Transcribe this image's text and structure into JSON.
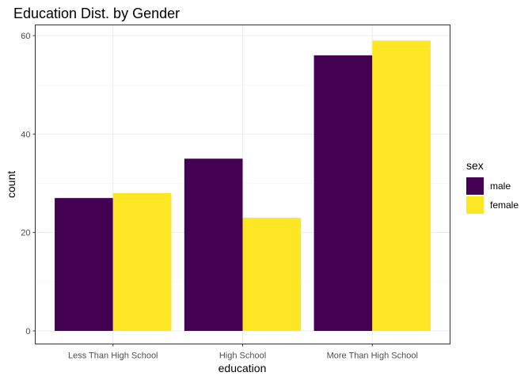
{
  "chart_data": {
    "type": "bar",
    "title": "Education Dist. by Gender",
    "xlabel": "education",
    "ylabel": "count",
    "categories": [
      "Less Than High School",
      "High School",
      "More Than High School"
    ],
    "series": [
      {
        "name": "male",
        "values": [
          27,
          35,
          56
        ],
        "color": "#440154"
      },
      {
        "name": "female",
        "values": [
          28,
          23,
          59
        ],
        "color": "#FDE725"
      }
    ],
    "ylim": [
      0,
      62
    ],
    "yticks": [
      0,
      20,
      40,
      60
    ],
    "grid": true,
    "legend": {
      "title": "sex",
      "placement": "right"
    }
  }
}
